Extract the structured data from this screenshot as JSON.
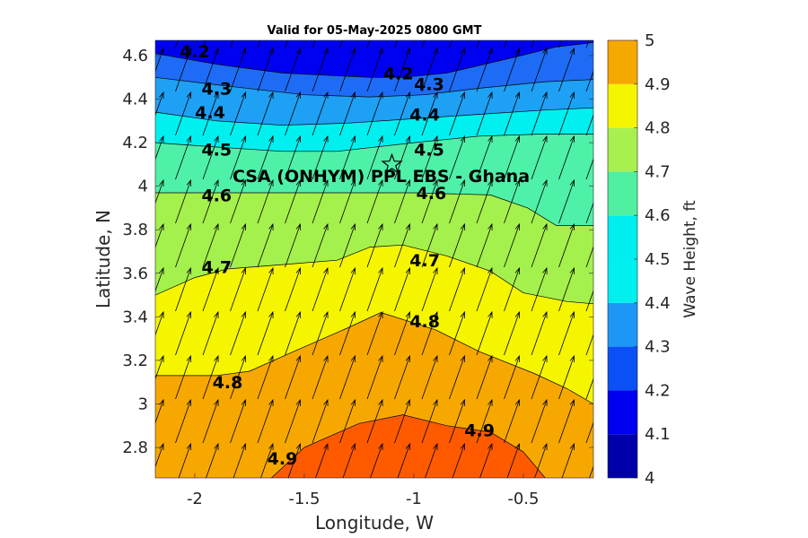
{
  "chart_data": {
    "type": "contour",
    "title": "Valid for 05-May-2025 0800 GMT",
    "xlabel": "Longitude, W",
    "ylabel": "Latitude, N",
    "xlim": [
      -2.18,
      -0.18
    ],
    "ylim": [
      2.66,
      4.67
    ],
    "x_ticks": [
      -2,
      -1.5,
      -1,
      -0.5
    ],
    "x_tick_labels": [
      "-2",
      "-1.5",
      "-1",
      "-0.5"
    ],
    "y_ticks": [
      2.8,
      3.0,
      3.2,
      3.4,
      3.6,
      3.8,
      4.0,
      4.2,
      4.4,
      4.6
    ],
    "y_tick_labels": [
      "2.8",
      "3",
      "3.2",
      "3.4",
      "3.6",
      "3.8",
      "4",
      "4.2",
      "4.4",
      "4.6"
    ],
    "colorbar": {
      "label": "Wave Height, ft",
      "levels": [
        4.0,
        4.1,
        4.2,
        4.3,
        4.4,
        4.5,
        4.6,
        4.7,
        4.8,
        4.9,
        5.0
      ],
      "tick_labels": [
        "4",
        "4.1",
        "4.2",
        "4.3",
        "4.4",
        "4.5",
        "4.6",
        "4.7",
        "4.8",
        "4.9",
        "5"
      ],
      "colors": [
        "#0000aa",
        "#0000f0",
        "#0a50f5",
        "#1e96f5",
        "#00f0f0",
        "#00eef0",
        "#50f0a0",
        "#a8f050",
        "#f5f500",
        "#f5a800",
        "#ff5a00"
      ],
      "band_colors": [
        "#0000aa",
        "#0000f0",
        "#1e6cf5",
        "#1ea0f5",
        "#00f0f0",
        "#4ff0a8",
        "#a4f04c",
        "#f5f500",
        "#f7a800",
        "#ff5a00"
      ]
    },
    "contours": [
      {
        "level": 4.2,
        "points": [
          [
            -2.18,
            4.61
          ],
          [
            -1.9,
            4.56
          ],
          [
            -1.6,
            4.52
          ],
          [
            -1.2,
            4.5
          ],
          [
            -1.05,
            4.5
          ],
          [
            -0.85,
            4.52
          ],
          [
            -0.55,
            4.59
          ],
          [
            -0.35,
            4.64
          ],
          [
            -0.18,
            4.66
          ]
        ]
      },
      {
        "level": 4.3,
        "points": [
          [
            -2.18,
            4.5
          ],
          [
            -1.85,
            4.46
          ],
          [
            -1.5,
            4.42
          ],
          [
            -1.2,
            4.41
          ],
          [
            -0.95,
            4.42
          ],
          [
            -0.7,
            4.45
          ],
          [
            -0.4,
            4.48
          ],
          [
            -0.18,
            4.49
          ]
        ]
      },
      {
        "level": 4.4,
        "points": [
          [
            -2.18,
            4.34
          ],
          [
            -1.9,
            4.3
          ],
          [
            -1.6,
            4.28
          ],
          [
            -1.3,
            4.29
          ],
          [
            -1.0,
            4.31
          ],
          [
            -0.7,
            4.33
          ],
          [
            -0.4,
            4.35
          ],
          [
            -0.18,
            4.36
          ]
        ]
      },
      {
        "level": 4.5,
        "points": [
          [
            -2.18,
            4.2
          ],
          [
            -1.9,
            4.18
          ],
          [
            -1.6,
            4.16
          ],
          [
            -1.35,
            4.16
          ],
          [
            -1.0,
            4.2
          ],
          [
            -0.7,
            4.23
          ],
          [
            -0.4,
            4.24
          ],
          [
            -0.18,
            4.24
          ]
        ]
      },
      {
        "level": 4.6,
        "points": [
          [
            -2.18,
            3.97
          ],
          [
            -1.8,
            3.97
          ],
          [
            -1.4,
            3.97
          ],
          [
            -1.0,
            3.97
          ],
          [
            -0.65,
            3.96
          ],
          [
            -0.48,
            3.9
          ],
          [
            -0.35,
            3.82
          ],
          [
            -0.18,
            3.82
          ]
        ]
      },
      {
        "level": 4.7,
        "points": [
          [
            -2.18,
            3.5
          ],
          [
            -2.0,
            3.58
          ],
          [
            -1.85,
            3.62
          ],
          [
            -1.6,
            3.64
          ],
          [
            -1.35,
            3.66
          ],
          [
            -1.2,
            3.72
          ],
          [
            -1.05,
            3.73
          ],
          [
            -0.85,
            3.68
          ],
          [
            -0.65,
            3.61
          ],
          [
            -0.5,
            3.51
          ],
          [
            -0.3,
            3.47
          ],
          [
            -0.18,
            3.46
          ]
        ]
      },
      {
        "level": 4.8,
        "points": [
          [
            -2.18,
            3.13
          ],
          [
            -1.9,
            3.13
          ],
          [
            -1.75,
            3.15
          ],
          [
            -1.55,
            3.24
          ],
          [
            -1.3,
            3.35
          ],
          [
            -1.15,
            3.42
          ],
          [
            -0.9,
            3.34
          ],
          [
            -0.7,
            3.24
          ],
          [
            -0.45,
            3.14
          ],
          [
            -0.3,
            3.07
          ],
          [
            -0.18,
            3.0
          ]
        ]
      },
      {
        "level": 4.9,
        "points": [
          [
            -1.65,
            2.66
          ],
          [
            -1.5,
            2.8
          ],
          [
            -1.25,
            2.91
          ],
          [
            -1.05,
            2.95
          ],
          [
            -0.85,
            2.9
          ],
          [
            -0.65,
            2.87
          ],
          [
            -0.5,
            2.78
          ],
          [
            -0.4,
            2.66
          ]
        ]
      }
    ],
    "contour_labels": [
      {
        "text": "4.2",
        "x": -2.0,
        "y": 4.62
      },
      {
        "text": "4.3",
        "x": -1.9,
        "y": 4.45
      },
      {
        "text": "4.4",
        "x": -1.93,
        "y": 4.34
      },
      {
        "text": "4.5",
        "x": -1.9,
        "y": 4.17
      },
      {
        "text": "4.6",
        "x": -1.9,
        "y": 3.96
      },
      {
        "text": "4.7",
        "x": -1.9,
        "y": 3.63
      },
      {
        "text": "4.8",
        "x": -1.85,
        "y": 3.1
      },
      {
        "text": "4.9",
        "x": -1.6,
        "y": 2.75
      },
      {
        "text": "4.2",
        "x": -1.07,
        "y": 4.52
      },
      {
        "text": "4.3",
        "x": -0.93,
        "y": 4.47
      },
      {
        "text": "4.4",
        "x": -0.95,
        "y": 4.33
      },
      {
        "text": "4.5",
        "x": -0.93,
        "y": 4.17
      },
      {
        "text": "4.6",
        "x": -0.92,
        "y": 3.97
      },
      {
        "text": "4.7",
        "x": -0.95,
        "y": 3.66
      },
      {
        "text": "4.8",
        "x": -0.95,
        "y": 3.38
      },
      {
        "text": "4.9",
        "x": -0.7,
        "y": 2.88
      }
    ],
    "wind_direction": "toward north-northeast",
    "site": {
      "label": "CSA (ONHYM) PPL EBS  - Ghana",
      "lon": -1.1,
      "lat": 4.1,
      "marker": "star"
    }
  }
}
